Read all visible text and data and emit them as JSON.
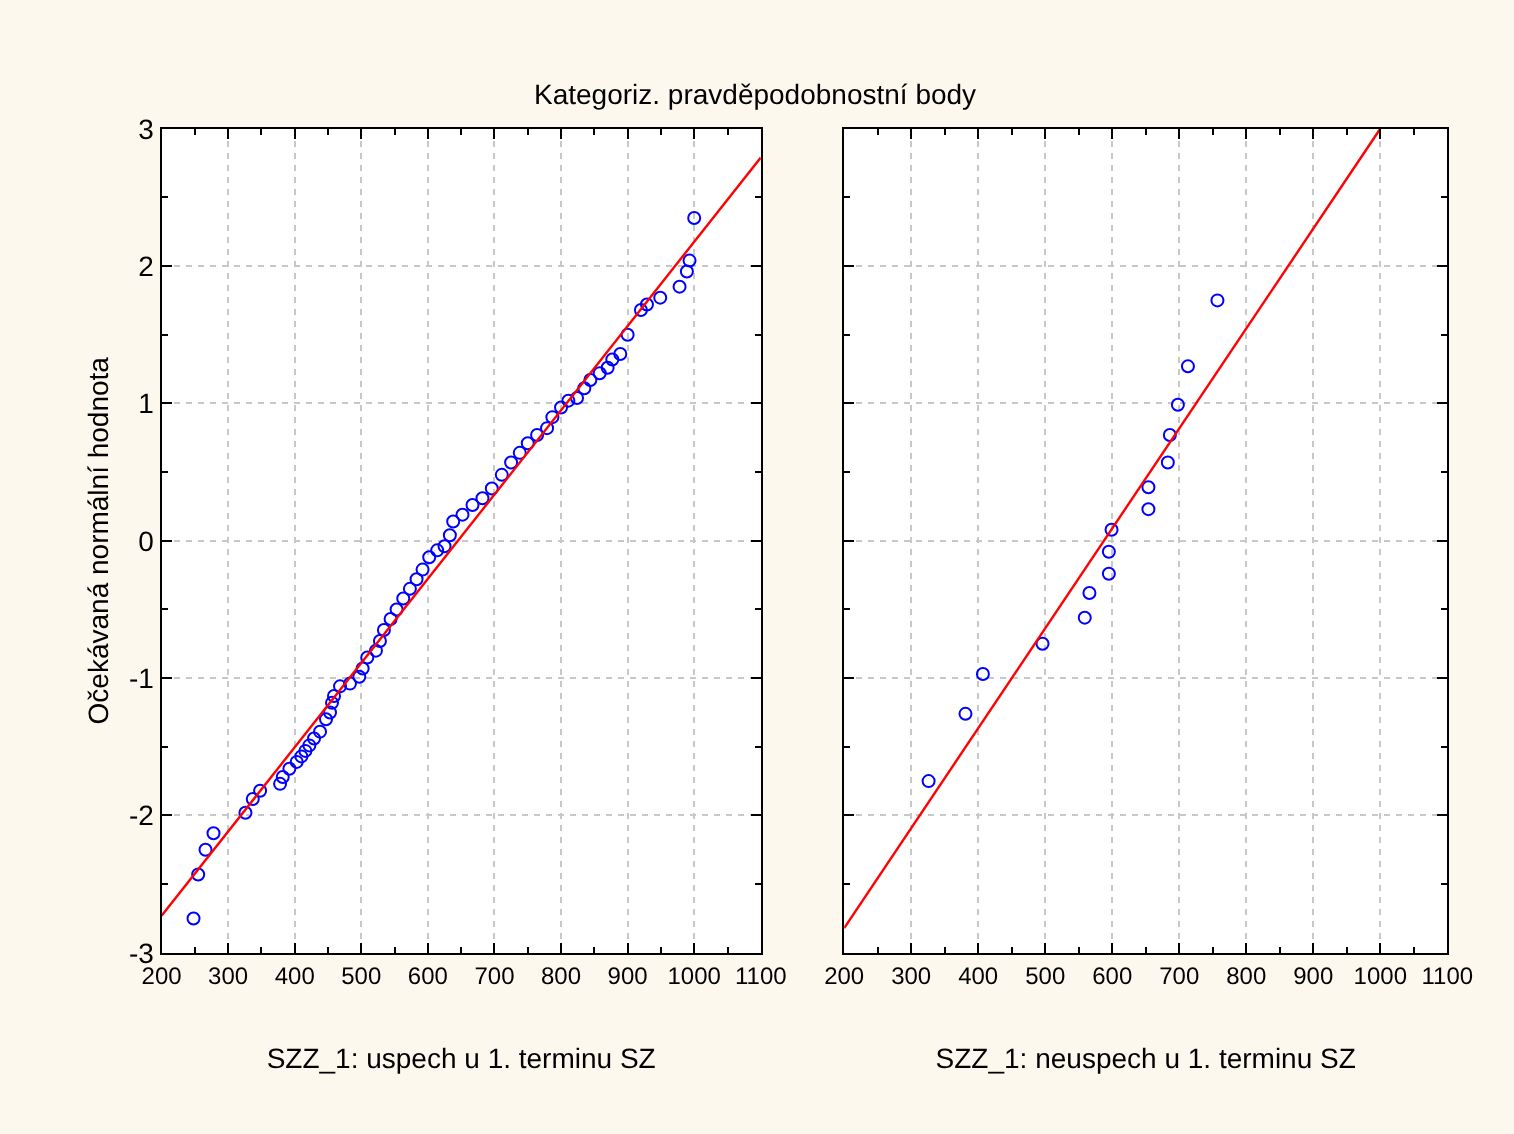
{
  "chart_data": [
    {
      "type": "scatter",
      "title": "Kategoriz. pravděpodobnostní body",
      "xlabel": "SZZ_1: uspech u 1. terminu SZ",
      "ylabel": "Očekávaná normální hodnota",
      "xlim": [
        200,
        1100
      ],
      "xticks": [
        200,
        300,
        400,
        500,
        600,
        700,
        800,
        900,
        1000,
        1100
      ],
      "ylim": [
        -3,
        3
      ],
      "yticks": [
        -3,
        -2,
        -1,
        0,
        1,
        2,
        3
      ],
      "grid": true,
      "series": [
        {
          "type": "scatter",
          "marker": "circle",
          "color": "#0000ff",
          "x": [
            248,
            255,
            266,
            278,
            326,
            337,
            348,
            378,
            382,
            392,
            403,
            410,
            416,
            422,
            429,
            438,
            447,
            453,
            456,
            459,
            468,
            483,
            497,
            502,
            509,
            522,
            528,
            534,
            544,
            553,
            563,
            573,
            583,
            592,
            602,
            614,
            625,
            633,
            638,
            652,
            667,
            682,
            696,
            711,
            725,
            738,
            750,
            764,
            779,
            787,
            800,
            811,
            824,
            835,
            844,
            858,
            870,
            877,
            889,
            900,
            920,
            929,
            949,
            978,
            989,
            993,
            1000
          ],
          "values": [
            -2.75,
            -2.43,
            -2.25,
            -2.13,
            -1.98,
            -1.88,
            -1.82,
            -1.77,
            -1.72,
            -1.66,
            -1.61,
            -1.57,
            -1.53,
            -1.49,
            -1.44,
            -1.39,
            -1.3,
            -1.25,
            -1.18,
            -1.13,
            -1.06,
            -1.04,
            -0.99,
            -0.93,
            -0.85,
            -0.8,
            -0.73,
            -0.65,
            -0.57,
            -0.5,
            -0.42,
            -0.35,
            -0.28,
            -0.21,
            -0.12,
            -0.07,
            -0.04,
            0.04,
            0.14,
            0.19,
            0.26,
            0.31,
            0.38,
            0.48,
            0.57,
            0.64,
            0.71,
            0.77,
            0.82,
            0.9,
            0.97,
            1.02,
            1.04,
            1.11,
            1.17,
            1.22,
            1.26,
            1.32,
            1.36,
            1.5,
            1.68,
            1.72,
            1.77,
            1.85,
            1.96,
            2.04,
            2.35
          ]
        },
        {
          "type": "line",
          "color": "#ff0000",
          "x": [
            200,
            1100
          ],
          "values": [
            -2.73,
            2.79
          ]
        }
      ]
    },
    {
      "type": "scatter",
      "xlabel": "SZZ_1: neuspech u 1. terminu SZ",
      "tick_labels": "x",
      "xlim": [
        200,
        1100
      ],
      "xticks": [
        200,
        300,
        400,
        500,
        600,
        700,
        800,
        900,
        1000,
        1100
      ],
      "ylim": [
        -3,
        3
      ],
      "yticks": [
        -3,
        -2,
        -1,
        0,
        1,
        2,
        3
      ],
      "grid": true,
      "series": [
        {
          "type": "scatter",
          "marker": "circle",
          "color": "#0000ff",
          "x": [
            326,
            381,
            407,
            496,
            559,
            566,
            595,
            595,
            599,
            654,
            654,
            683,
            686,
            698,
            713,
            757
          ],
          "values": [
            -1.75,
            -1.26,
            -0.97,
            -0.75,
            -0.56,
            -0.38,
            -0.24,
            -0.08,
            0.08,
            0.23,
            0.39,
            0.57,
            0.77,
            0.99,
            1.27,
            1.75
          ]
        },
        {
          "type": "line",
          "color": "#ff0000",
          "x": [
            200,
            1000
          ],
          "values": [
            -2.82,
            3.0
          ]
        }
      ]
    }
  ]
}
